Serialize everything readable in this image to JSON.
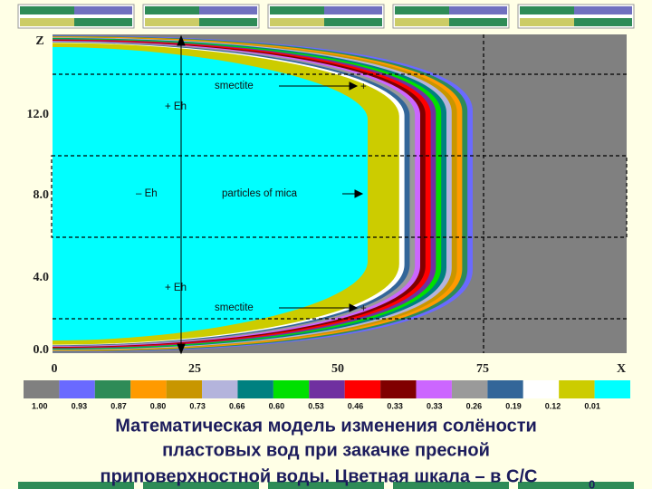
{
  "plot": {
    "y_axis_label": "Z",
    "x_axis_label": "X",
    "y_ticks": [
      "0.0",
      "4.0",
      "8.0",
      "12.0"
    ],
    "x_ticks": [
      "0",
      "25",
      "50",
      "75"
    ],
    "annotations": [
      "smectite",
      "+ Eh",
      "– Eh",
      "particles of mica",
      "+ Eh",
      "smectite"
    ]
  },
  "color_scale": {
    "colors": [
      "#808080",
      "#6a6aff",
      "#2e8b57",
      "#ff9a00",
      "#c89600",
      "#b4b4dc",
      "#008080",
      "#00e000",
      "#7030a0",
      "#ff0000",
      "#800000",
      "#cc66ff",
      "#9a9a9a",
      "#336699",
      "#ffffff",
      "#cccc00",
      "#00ffff"
    ],
    "labels": [
      "1.00",
      "0.93",
      "0.87",
      "0.80",
      "0.73",
      "0.66",
      "0.60",
      "0.53",
      "0.46",
      "0.33",
      "0.33",
      "0.26",
      "0.19",
      "0.12",
      "0.01"
    ]
  },
  "caption": {
    "lines": [
      "Математическая модель изменения солёности",
      "пластовых вод при закачке пресной",
      "приповерхностной воды. Цветная шкала – в C/C"
    ],
    "subscript": "0"
  }
}
